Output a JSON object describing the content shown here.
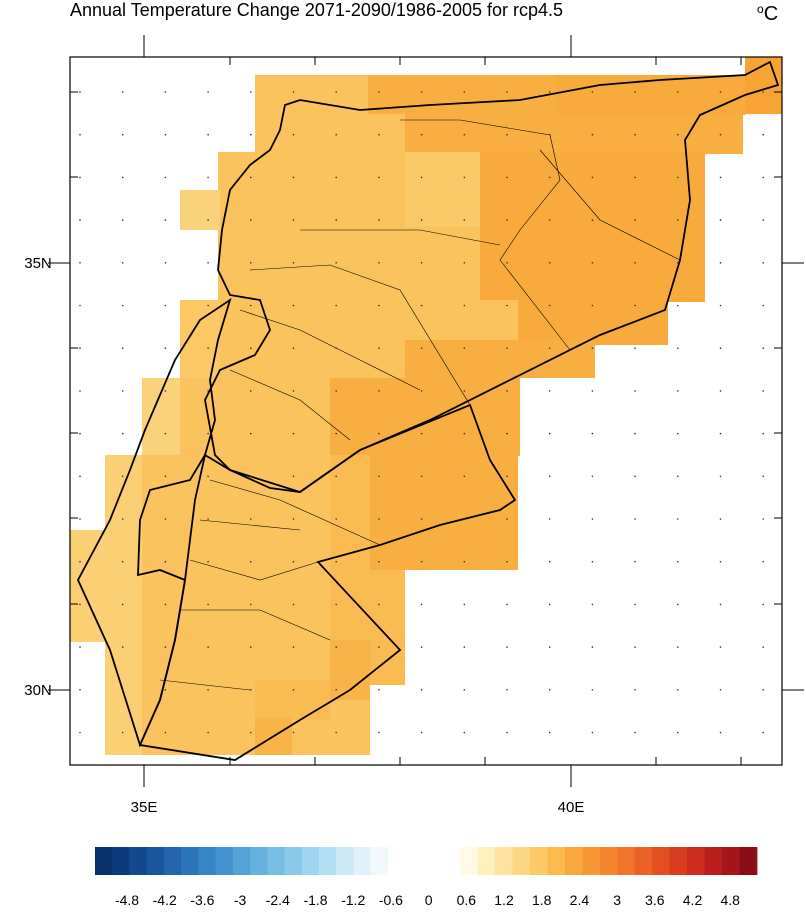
{
  "title": "Annual Temperature Change 2071-2090/1986-2005 for rcp4.5",
  "units": {
    "superscript": "o",
    "base": "C"
  },
  "axes": {
    "y_labels": [
      "35N",
      "30N"
    ],
    "x_labels": [
      "35E",
      "40E"
    ]
  },
  "colorbar": {
    "labels": [
      "-4.8",
      "-4.2",
      "-3.6",
      "-3",
      "-2.4",
      "-1.8",
      "-1.2",
      "-0.6",
      "0",
      "0.6",
      "1.2",
      "1.8",
      "2.4",
      "3",
      "3.6",
      "4.2",
      "4.8"
    ]
  }
}
